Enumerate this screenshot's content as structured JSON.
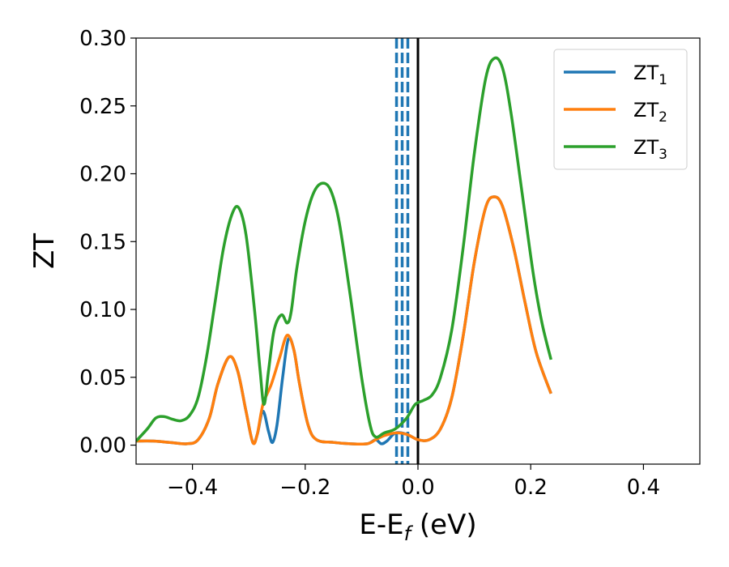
{
  "chart_data": {
    "type": "line",
    "xlabel": "E-E",
    "xlabel_sub": "f",
    "xlabel_unit": " (eV)",
    "ylabel": "ZT",
    "xlim": [
      -0.5,
      0.5
    ],
    "ylim": [
      -0.014,
      0.3
    ],
    "xticks": [
      -0.4,
      -0.2,
      0.0,
      0.2,
      0.4
    ],
    "xtick_labels": [
      "−0.4",
      "−0.2",
      "0.0",
      "0.2",
      "0.4"
    ],
    "yticks": [
      0.0,
      0.05,
      0.1,
      0.15,
      0.2,
      0.25,
      0.3
    ],
    "ytick_labels": [
      "0.00",
      "0.05",
      "0.10",
      "0.15",
      "0.20",
      "0.25",
      "0.30"
    ],
    "grid": false,
    "legend_position": "top-right",
    "vertical_lines": [
      {
        "x": 0.0,
        "style": "solid",
        "color": "#000000"
      },
      {
        "x": -0.038,
        "style": "dashed",
        "color": "#1f77b4"
      },
      {
        "x": -0.028,
        "style": "dashed",
        "color": "#1f77b4"
      },
      {
        "x": -0.018,
        "style": "dashed",
        "color": "#1f77b4"
      }
    ],
    "series": [
      {
        "name": "ZT",
        "name_sub": "1",
        "color": "#1f77b4",
        "points": [
          [
            -0.5,
            0.003
          ],
          [
            -0.47,
            0.003
          ],
          [
            -0.44,
            0.002
          ],
          [
            -0.41,
            0.001
          ],
          [
            -0.39,
            0.004
          ],
          [
            -0.37,
            0.02
          ],
          [
            -0.355,
            0.045
          ],
          [
            -0.335,
            0.065
          ],
          [
            -0.32,
            0.055
          ],
          [
            -0.305,
            0.025
          ],
          [
            -0.293,
            0.002
          ],
          [
            -0.285,
            0.008
          ],
          [
            -0.275,
            0.025
          ],
          [
            -0.265,
            0.01
          ],
          [
            -0.258,
            0.002
          ],
          [
            -0.25,
            0.015
          ],
          [
            -0.24,
            0.05
          ],
          [
            -0.23,
            0.078
          ],
          [
            -0.22,
            0.07
          ],
          [
            -0.21,
            0.045
          ],
          [
            -0.195,
            0.015
          ],
          [
            -0.18,
            0.004
          ],
          [
            -0.15,
            0.002
          ],
          [
            -0.12,
            0.001
          ],
          [
            -0.09,
            0.001
          ],
          [
            -0.075,
            0.004
          ],
          [
            -0.065,
            0.001
          ],
          [
            -0.055,
            0.003
          ],
          [
            -0.04,
            0.009
          ],
          [
            -0.02,
            0.008
          ],
          [
            0.0,
            0.004
          ],
          [
            0.02,
            0.004
          ],
          [
            0.04,
            0.012
          ],
          [
            0.06,
            0.035
          ],
          [
            0.08,
            0.08
          ],
          [
            0.1,
            0.135
          ],
          [
            0.12,
            0.175
          ],
          [
            0.135,
            0.183
          ],
          [
            0.15,
            0.176
          ],
          [
            0.17,
            0.145
          ],
          [
            0.19,
            0.105
          ],
          [
            0.21,
            0.068
          ],
          [
            0.236,
            0.038
          ]
        ]
      },
      {
        "name": "ZT",
        "name_sub": "2",
        "color": "#ff7f0e",
        "points": [
          [
            -0.5,
            0.003
          ],
          [
            -0.47,
            0.003
          ],
          [
            -0.44,
            0.002
          ],
          [
            -0.41,
            0.001
          ],
          [
            -0.39,
            0.004
          ],
          [
            -0.37,
            0.02
          ],
          [
            -0.355,
            0.045
          ],
          [
            -0.335,
            0.065
          ],
          [
            -0.32,
            0.055
          ],
          [
            -0.305,
            0.025
          ],
          [
            -0.293,
            0.002
          ],
          [
            -0.285,
            0.008
          ],
          [
            -0.275,
            0.03
          ],
          [
            -0.26,
            0.045
          ],
          [
            -0.245,
            0.065
          ],
          [
            -0.232,
            0.081
          ],
          [
            -0.22,
            0.07
          ],
          [
            -0.21,
            0.045
          ],
          [
            -0.195,
            0.015
          ],
          [
            -0.18,
            0.004
          ],
          [
            -0.15,
            0.002
          ],
          [
            -0.12,
            0.001
          ],
          [
            -0.09,
            0.001
          ],
          [
            -0.075,
            0.004
          ],
          [
            -0.06,
            0.007
          ],
          [
            -0.04,
            0.009
          ],
          [
            -0.02,
            0.008
          ],
          [
            0.0,
            0.004
          ],
          [
            0.02,
            0.004
          ],
          [
            0.04,
            0.012
          ],
          [
            0.06,
            0.035
          ],
          [
            0.08,
            0.08
          ],
          [
            0.1,
            0.135
          ],
          [
            0.12,
            0.175
          ],
          [
            0.135,
            0.183
          ],
          [
            0.15,
            0.176
          ],
          [
            0.17,
            0.145
          ],
          [
            0.19,
            0.105
          ],
          [
            0.21,
            0.068
          ],
          [
            0.236,
            0.038
          ]
        ]
      },
      {
        "name": "ZT",
        "name_sub": "3",
        "color": "#2ca02c",
        "points": [
          [
            -0.5,
            0.003
          ],
          [
            -0.48,
            0.012
          ],
          [
            -0.465,
            0.02
          ],
          [
            -0.45,
            0.021
          ],
          [
            -0.435,
            0.019
          ],
          [
            -0.42,
            0.018
          ],
          [
            -0.405,
            0.022
          ],
          [
            -0.39,
            0.035
          ],
          [
            -0.375,
            0.065
          ],
          [
            -0.36,
            0.105
          ],
          [
            -0.345,
            0.145
          ],
          [
            -0.33,
            0.17
          ],
          [
            -0.318,
            0.175
          ],
          [
            -0.305,
            0.155
          ],
          [
            -0.29,
            0.1
          ],
          [
            -0.28,
            0.055
          ],
          [
            -0.273,
            0.03
          ],
          [
            -0.265,
            0.055
          ],
          [
            -0.255,
            0.085
          ],
          [
            -0.242,
            0.096
          ],
          [
            -0.232,
            0.09
          ],
          [
            -0.225,
            0.098
          ],
          [
            -0.215,
            0.13
          ],
          [
            -0.2,
            0.165
          ],
          [
            -0.185,
            0.186
          ],
          [
            -0.17,
            0.193
          ],
          [
            -0.155,
            0.188
          ],
          [
            -0.14,
            0.165
          ],
          [
            -0.12,
            0.11
          ],
          [
            -0.1,
            0.05
          ],
          [
            -0.085,
            0.015
          ],
          [
            -0.075,
            0.006
          ],
          [
            -0.06,
            0.009
          ],
          [
            -0.04,
            0.012
          ],
          [
            -0.02,
            0.02
          ],
          [
            -0.005,
            0.03
          ],
          [
            0.01,
            0.033
          ],
          [
            0.025,
            0.037
          ],
          [
            0.04,
            0.05
          ],
          [
            0.06,
            0.085
          ],
          [
            0.08,
            0.145
          ],
          [
            0.1,
            0.215
          ],
          [
            0.12,
            0.27
          ],
          [
            0.135,
            0.285
          ],
          [
            0.15,
            0.278
          ],
          [
            0.165,
            0.245
          ],
          [
            0.185,
            0.185
          ],
          [
            0.205,
            0.125
          ],
          [
            0.22,
            0.09
          ],
          [
            0.236,
            0.063
          ]
        ]
      }
    ]
  }
}
